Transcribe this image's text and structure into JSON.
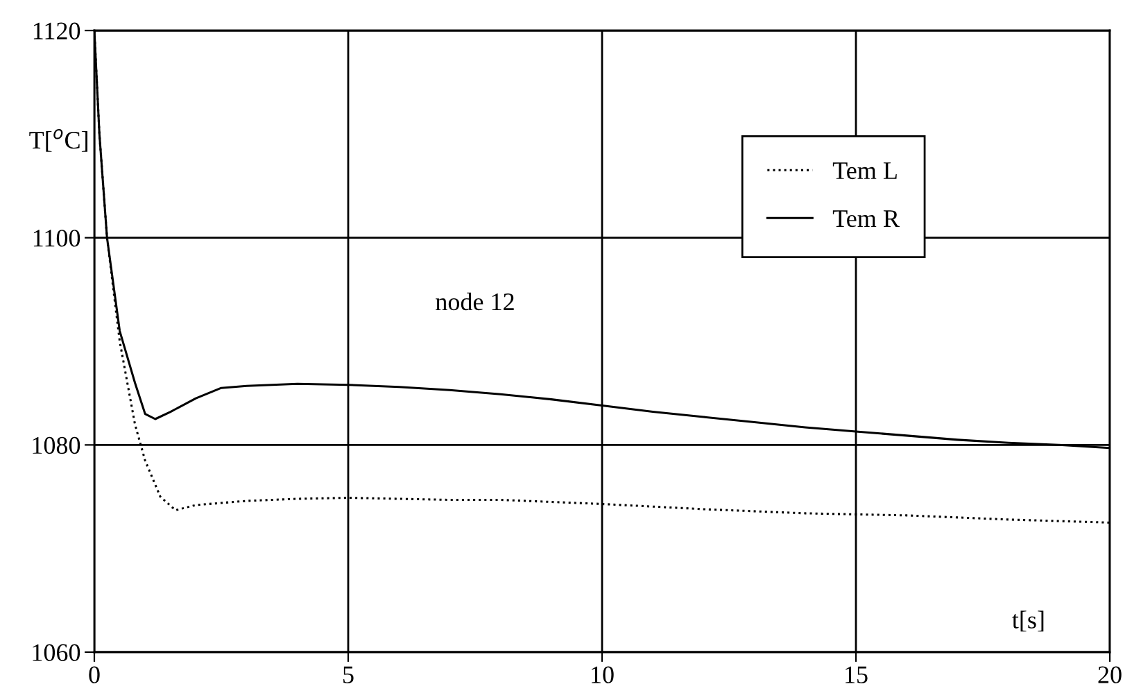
{
  "chart_data": {
    "type": "line",
    "xlabel": "t[s]",
    "ylabel": "T[$^{o}$C]",
    "annotations": [
      "node 12"
    ],
    "xlim": [
      0,
      20
    ],
    "ylim": [
      1060,
      1120
    ],
    "xticks": [
      0,
      5,
      10,
      15,
      20
    ],
    "yticks": [
      1060,
      1080,
      1100,
      1120
    ],
    "grid": true,
    "legend": "top right",
    "series": [
      {
        "name": "Tem L",
        "color": "#000000",
        "line_style": "dotted",
        "x": [
          0,
          0.1,
          0.25,
          0.5,
          0.8,
          1.0,
          1.3,
          1.6,
          2,
          3,
          4,
          5,
          6,
          7,
          8,
          9,
          10,
          12,
          14,
          16,
          18,
          20
        ],
        "values": [
          1120,
          1110,
          1100,
          1090,
          1082,
          1078.5,
          1075,
          1073.7,
          1074.2,
          1074.6,
          1074.8,
          1074.9,
          1074.8,
          1074.7,
          1074.7,
          1074.5,
          1074.3,
          1073.8,
          1073.4,
          1073.2,
          1072.8,
          1072.5
        ]
      },
      {
        "name": "Tem R",
        "color": "#000000",
        "line_style": "solid",
        "x": [
          0,
          0.1,
          0.25,
          0.5,
          0.8,
          1.0,
          1.2,
          1.5,
          2,
          2.5,
          3,
          4,
          5,
          6,
          7,
          8,
          9,
          10,
          11,
          12,
          13,
          14,
          15,
          16,
          17,
          18,
          19,
          20
        ],
        "values": [
          1120,
          1110,
          1100,
          1091,
          1086,
          1083,
          1082.5,
          1083.2,
          1084.5,
          1085.5,
          1085.7,
          1085.9,
          1085.8,
          1085.6,
          1085.3,
          1084.9,
          1084.4,
          1083.8,
          1083.2,
          1082.7,
          1082.2,
          1081.7,
          1081.3,
          1080.9,
          1080.5,
          1080.2,
          1080,
          1079.7
        ]
      }
    ]
  }
}
